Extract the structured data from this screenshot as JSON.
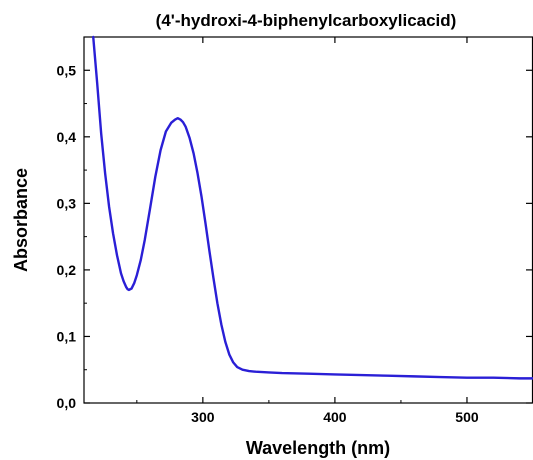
{
  "chart_data": {
    "type": "line",
    "title": "(4'-hydroxi-4-biphenylcarboxylicacid)",
    "xlabel": "Wavelength (nm)",
    "ylabel": "Absorbance",
    "xlim": [
      210,
      550
    ],
    "ylim": [
      0.0,
      0.55
    ],
    "x_ticks": [
      {
        "value": 300,
        "label": "300"
      },
      {
        "value": 400,
        "label": "400"
      },
      {
        "value": 500,
        "label": "500"
      }
    ],
    "y_ticks": [
      {
        "value": 0.0,
        "label": "0,0"
      },
      {
        "value": 0.1,
        "label": "0,1"
      },
      {
        "value": 0.2,
        "label": "0,2"
      },
      {
        "value": 0.3,
        "label": "0,3"
      },
      {
        "value": 0.4,
        "label": "0,4"
      },
      {
        "value": 0.5,
        "label": "0,5"
      }
    ],
    "grid": false,
    "series": [
      {
        "color": "#2a1fd6",
        "x": [
          217,
          220,
          223,
          226,
          229,
          232,
          235,
          238,
          240,
          242,
          243,
          244,
          246,
          248,
          250,
          253,
          256,
          260,
          264,
          268,
          272,
          276,
          279,
          281,
          283,
          285,
          287,
          290,
          293,
          296,
          299,
          302,
          305,
          308,
          311,
          314,
          317,
          320,
          323,
          326,
          330,
          335,
          340,
          350,
          360,
          380,
          400,
          420,
          440,
          460,
          480,
          500,
          520,
          540,
          550
        ],
        "y": [
          0.55,
          0.48,
          0.405,
          0.345,
          0.295,
          0.255,
          0.222,
          0.195,
          0.183,
          0.174,
          0.171,
          0.17,
          0.172,
          0.18,
          0.192,
          0.215,
          0.245,
          0.292,
          0.34,
          0.38,
          0.408,
          0.421,
          0.426,
          0.428,
          0.426,
          0.422,
          0.415,
          0.398,
          0.375,
          0.345,
          0.31,
          0.27,
          0.228,
          0.188,
          0.15,
          0.118,
          0.092,
          0.073,
          0.061,
          0.054,
          0.05,
          0.048,
          0.047,
          0.046,
          0.045,
          0.044,
          0.043,
          0.042,
          0.041,
          0.04,
          0.039,
          0.038,
          0.038,
          0.037,
          0.037
        ]
      }
    ]
  }
}
